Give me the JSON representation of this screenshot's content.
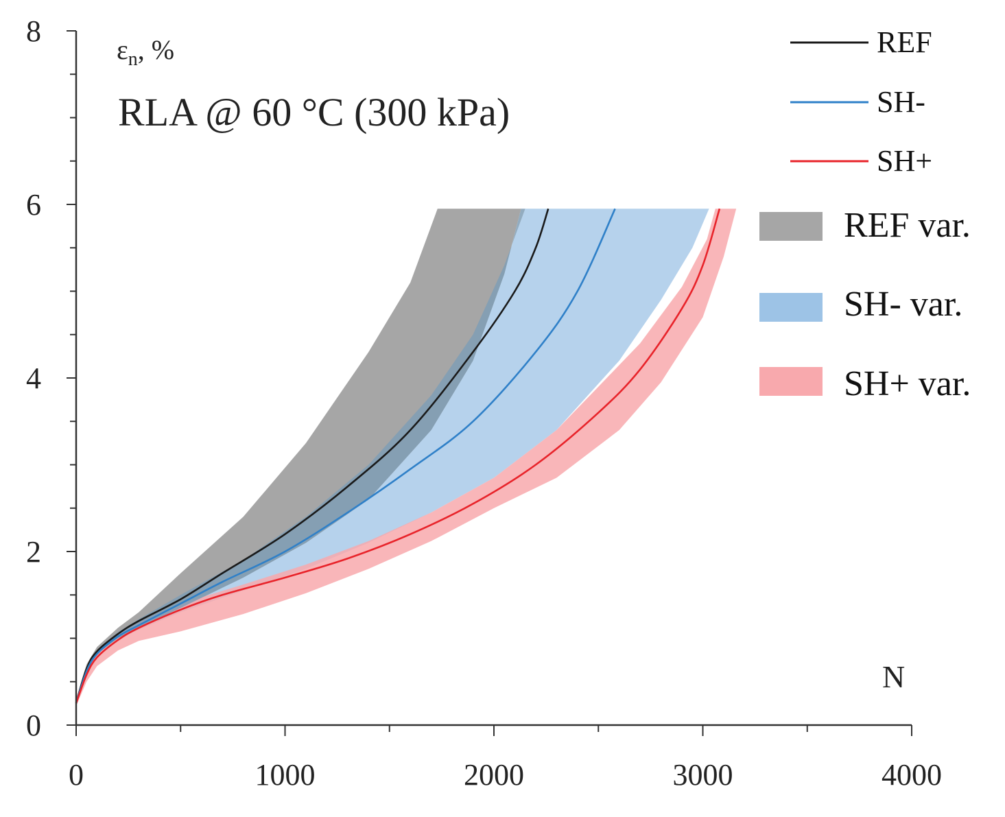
{
  "chart_data": {
    "type": "line",
    "title": "RLA @ 60 °C (300 kPa)",
    "ylabel": "εn, %",
    "ylabel_main": "ε",
    "ylabel_sub": "n",
    "ylabel_suffix": ", %",
    "xlabel": "N",
    "xlim": [
      0,
      4000
    ],
    "ylim": [
      0,
      8
    ],
    "x_ticks": [
      0,
      1000,
      2000,
      3000,
      4000
    ],
    "y_ticks": [
      0,
      2,
      4,
      6,
      8
    ],
    "x_ticks_minor_step": 500,
    "y_ticks_minor_step": 0.5,
    "x_tick_labels": [
      "0",
      "1000",
      "2000",
      "3000",
      "4000"
    ],
    "y_tick_labels": [
      "0",
      "2",
      "4",
      "6",
      "8"
    ],
    "grid": false,
    "legend_position": "right",
    "colors": {
      "REF": "#1a1a1a",
      "SH-": "#2f80c8",
      "SH+": "#e8232a",
      "REF var.": "#a6a6a6",
      "SH- var.": "#9dc3e6",
      "SH+ var.": "#f8a9ad",
      "overlap": "#7f9db5"
    },
    "series": [
      {
        "name": "REF",
        "x": [
          0,
          50,
          100,
          200,
          300,
          500,
          700,
          1000,
          1300,
          1600,
          1900,
          2100,
          2200,
          2260
        ],
        "y": [
          0.25,
          0.65,
          0.85,
          1.05,
          1.2,
          1.45,
          1.75,
          2.2,
          2.75,
          3.4,
          4.3,
          5.0,
          5.5,
          5.95
        ]
      },
      {
        "name": "SH-",
        "x": [
          0,
          50,
          100,
          200,
          300,
          500,
          700,
          1000,
          1300,
          1600,
          1900,
          2200,
          2400,
          2580
        ],
        "y": [
          0.25,
          0.62,
          0.82,
          1.02,
          1.15,
          1.4,
          1.65,
          2.0,
          2.45,
          2.95,
          3.5,
          4.3,
          5.0,
          5.95
        ]
      },
      {
        "name": "SH+",
        "x": [
          0,
          50,
          100,
          200,
          300,
          500,
          700,
          1000,
          1300,
          1600,
          1900,
          2200,
          2500,
          2700,
          2900,
          3000,
          3080
        ],
        "y": [
          0.25,
          0.58,
          0.78,
          0.98,
          1.12,
          1.33,
          1.5,
          1.7,
          1.92,
          2.2,
          2.55,
          3.0,
          3.6,
          4.1,
          4.8,
          5.3,
          5.95
        ]
      }
    ],
    "bands": [
      {
        "name": "REF var.",
        "upper": {
          "x": [
            0,
            50,
            100,
            200,
            300,
            500,
            800,
            1100,
            1400,
            1600,
            1730
          ],
          "y": [
            0.3,
            0.7,
            0.9,
            1.12,
            1.3,
            1.75,
            2.4,
            3.25,
            4.3,
            5.1,
            5.95
          ]
        },
        "lower": {
          "x": [
            0,
            50,
            100,
            200,
            300,
            500,
            800,
            1100,
            1400,
            1700,
            1900,
            2050,
            2130
          ],
          "y": [
            0.25,
            0.62,
            0.82,
            1.0,
            1.12,
            1.35,
            1.7,
            2.1,
            2.6,
            3.4,
            4.2,
            5.2,
            5.95
          ]
        }
      },
      {
        "name": "SH- var.",
        "upper": {
          "x": [
            0,
            50,
            100,
            200,
            300,
            500,
            800,
            1100,
            1400,
            1700,
            1900,
            2050,
            2150
          ],
          "y": [
            0.28,
            0.66,
            0.86,
            1.07,
            1.22,
            1.5,
            1.9,
            2.4,
            3.0,
            3.8,
            4.5,
            5.3,
            5.95
          ]
        },
        "lower": {
          "x": [
            0,
            50,
            100,
            200,
            300,
            500,
            800,
            1100,
            1400,
            1700,
            2000,
            2300,
            2600,
            2800,
            2950,
            3030
          ],
          "y": [
            0.24,
            0.6,
            0.8,
            0.98,
            1.1,
            1.3,
            1.55,
            1.8,
            2.1,
            2.45,
            2.85,
            3.4,
            4.2,
            4.9,
            5.5,
            5.95
          ]
        }
      },
      {
        "name": "SH+ var.",
        "upper": {
          "x": [
            0,
            50,
            100,
            200,
            300,
            500,
            800,
            1100,
            1400,
            1700,
            2000,
            2300,
            2500,
            2700,
            2900,
            3020,
            3060
          ],
          "y": [
            0.32,
            0.62,
            0.85,
            1.04,
            1.18,
            1.4,
            1.62,
            1.85,
            2.12,
            2.45,
            2.85,
            3.4,
            3.9,
            4.4,
            5.05,
            5.6,
            5.95
          ]
        },
        "lower": {
          "x": [
            0,
            50,
            100,
            200,
            300,
            500,
            800,
            1100,
            1400,
            1700,
            2000,
            2300,
            2600,
            2800,
            3000,
            3100,
            3160
          ],
          "y": [
            0.22,
            0.5,
            0.68,
            0.86,
            0.97,
            1.08,
            1.28,
            1.52,
            1.8,
            2.12,
            2.5,
            2.85,
            3.4,
            3.95,
            4.7,
            5.4,
            5.95
          ]
        }
      }
    ]
  }
}
